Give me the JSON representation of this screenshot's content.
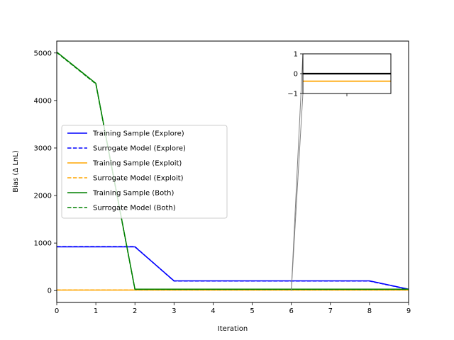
{
  "chart_data": {
    "type": "line",
    "title": "",
    "xlabel": "Iteration",
    "ylabel": "Bias (Δ LnL)",
    "xlim": [
      0,
      9
    ],
    "ylim": [
      -250,
      5250
    ],
    "xticks": [
      0,
      1,
      2,
      3,
      4,
      5,
      6,
      7,
      8,
      9
    ],
    "yticks": [
      0,
      1000,
      2000,
      3000,
      4000,
      5000
    ],
    "grid": false,
    "legend_position": "center-left",
    "series": [
      {
        "name": "Training Sample (Explore)",
        "color": "#0000ff",
        "dash": "solid",
        "x": [
          0,
          1,
          2,
          3,
          4,
          5,
          6,
          7,
          8,
          9
        ],
        "y": [
          920,
          920,
          920,
          205,
          205,
          205,
          205,
          205,
          205,
          30
        ]
      },
      {
        "name": "Surrogate Model (Explore)",
        "color": "#0000ff",
        "dash": "dashed",
        "x": [
          0,
          1,
          2,
          3,
          4,
          5,
          6,
          7,
          8,
          9
        ],
        "y": [
          925,
          925,
          925,
          200,
          200,
          200,
          200,
          200,
          200,
          25
        ]
      },
      {
        "name": "Training Sample (Exploit)",
        "color": "#ffa500",
        "dash": "solid",
        "x": [
          0,
          1,
          2,
          3,
          4,
          5,
          6,
          7,
          8,
          9
        ],
        "y": [
          10,
          10,
          10,
          10,
          10,
          10,
          10,
          10,
          10,
          10
        ]
      },
      {
        "name": "Surrogate Model (Exploit)",
        "color": "#ffa500",
        "dash": "dashed",
        "x": [
          0,
          1,
          2,
          3,
          4,
          5,
          6,
          7,
          8,
          9
        ],
        "y": [
          12,
          12,
          12,
          12,
          12,
          12,
          12,
          12,
          12,
          12
        ]
      },
      {
        "name": "Training Sample (Both)",
        "color": "#008000",
        "dash": "solid",
        "x": [
          0,
          1,
          2,
          3,
          4,
          5,
          6,
          7,
          8,
          9
        ],
        "y": [
          5020,
          4360,
          30,
          30,
          30,
          30,
          30,
          30,
          30,
          30
        ]
      },
      {
        "name": "Surrogate Model (Both)",
        "color": "#008000",
        "dash": "dashed",
        "x": [
          0,
          1,
          2,
          3,
          4,
          5,
          6,
          7,
          8,
          9
        ],
        "y": [
          5010,
          4350,
          25,
          25,
          25,
          25,
          25,
          25,
          25,
          25
        ]
      }
    ],
    "inset": {
      "xlim": [
        5.9,
        6.1
      ],
      "ylim": [
        -1,
        1
      ],
      "yticks": [
        -1,
        0,
        1
      ],
      "zoom_x_center": 6,
      "series": [
        {
          "color": "#000000",
          "y": 0
        },
        {
          "color": "#ffa500",
          "y": -0.38
        }
      ]
    }
  }
}
